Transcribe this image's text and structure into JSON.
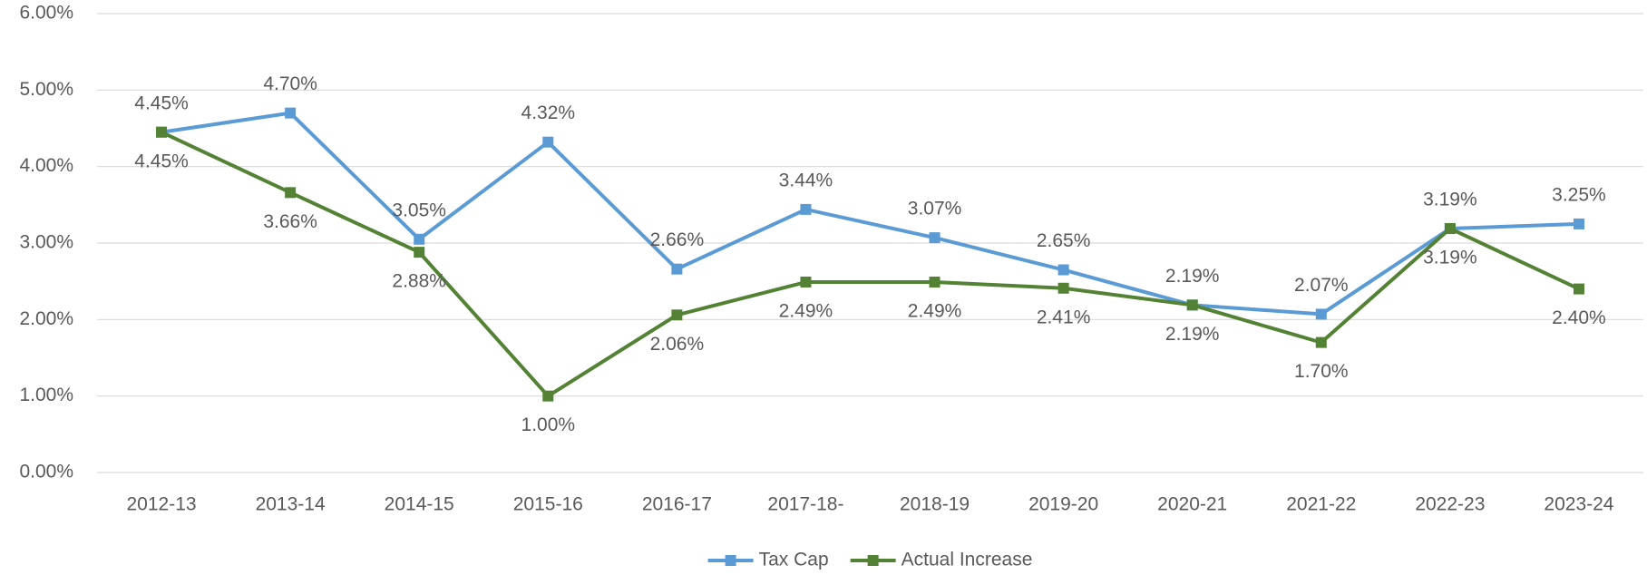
{
  "chart_data": {
    "type": "line",
    "categories": [
      "2012-13",
      "2013-14",
      "2014-15",
      "2015-16",
      "2016-17",
      "2017-18-",
      "2018-19",
      "2019-20",
      "2020-21",
      "2021-22",
      "2022-23",
      "2023-24"
    ],
    "series": [
      {
        "name": "Tax Cap",
        "color": "#5b9bd5",
        "values": [
          4.45,
          4.7,
          3.05,
          4.32,
          2.66,
          3.44,
          3.07,
          2.65,
          2.19,
          2.07,
          3.19,
          3.25
        ],
        "value_labels": [
          "4.45%",
          "4.70%",
          "3.05%",
          "4.32%",
          "2.66%",
          "3.44%",
          "3.07%",
          "2.65%",
          "2.19%",
          "2.07%",
          "3.19%",
          "3.25%"
        ]
      },
      {
        "name": "Actual Increase",
        "color": "#548235",
        "values": [
          4.45,
          3.66,
          2.88,
          1.0,
          2.06,
          2.49,
          2.49,
          2.41,
          2.19,
          1.7,
          3.19,
          2.4
        ],
        "value_labels": [
          "4.45%",
          "3.66%",
          "2.88%",
          "1.00%",
          "2.06%",
          "2.49%",
          "2.49%",
          "2.41%",
          "2.19%",
          "1.70%",
          "3.19%",
          "2.40%"
        ]
      }
    ],
    "ylim": [
      0,
      6
    ],
    "yticks": [
      {
        "value": 0,
        "label": "0.00%"
      },
      {
        "value": 1,
        "label": "1.00%"
      },
      {
        "value": 2,
        "label": "2.00%"
      },
      {
        "value": 3,
        "label": "3.00%"
      },
      {
        "value": 4,
        "label": "4.00%"
      },
      {
        "value": 5,
        "label": "5.00%"
      },
      {
        "value": 6,
        "label": "6.00%"
      }
    ],
    "grid": true,
    "legend": "bottom"
  }
}
